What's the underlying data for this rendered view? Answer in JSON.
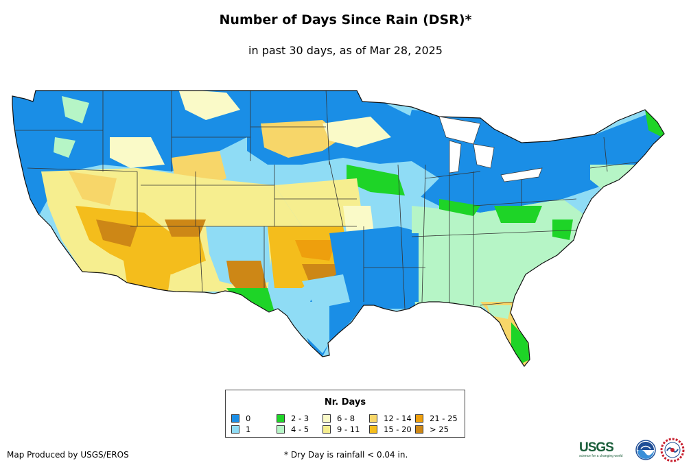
{
  "title": "Number of Days Since Rain (DSR)*",
  "subtitle": "in past 30 days, as of Mar 28, 2025",
  "legend": {
    "title": "Nr. Days",
    "items": [
      {
        "label": "0",
        "color": "#1a8ee6"
      },
      {
        "label": "1",
        "color": "#8fdcf5"
      },
      {
        "label": "2 - 3",
        "color": "#1ed427"
      },
      {
        "label": "4 - 5",
        "color": "#b6f5c6"
      },
      {
        "label": "6 - 8",
        "color": "#fafac8"
      },
      {
        "label": "9 - 11",
        "color": "#f6ee8f"
      },
      {
        "label": "12 - 14",
        "color": "#f7d669"
      },
      {
        "label": "15 - 20",
        "color": "#f4bd1c"
      },
      {
        "label": "21 - 25",
        "color": "#ee9f0d"
      },
      {
        "label": "> 25",
        "color": "#cd8716"
      }
    ]
  },
  "credit": "Map Produced by USGS/EROS",
  "footnote": "* Dry Day is rainfall < 0.04 in.",
  "logos": {
    "usgs": "USGS",
    "usgs_tagline": "science for a changing world",
    "noaa": "NOAA"
  }
}
